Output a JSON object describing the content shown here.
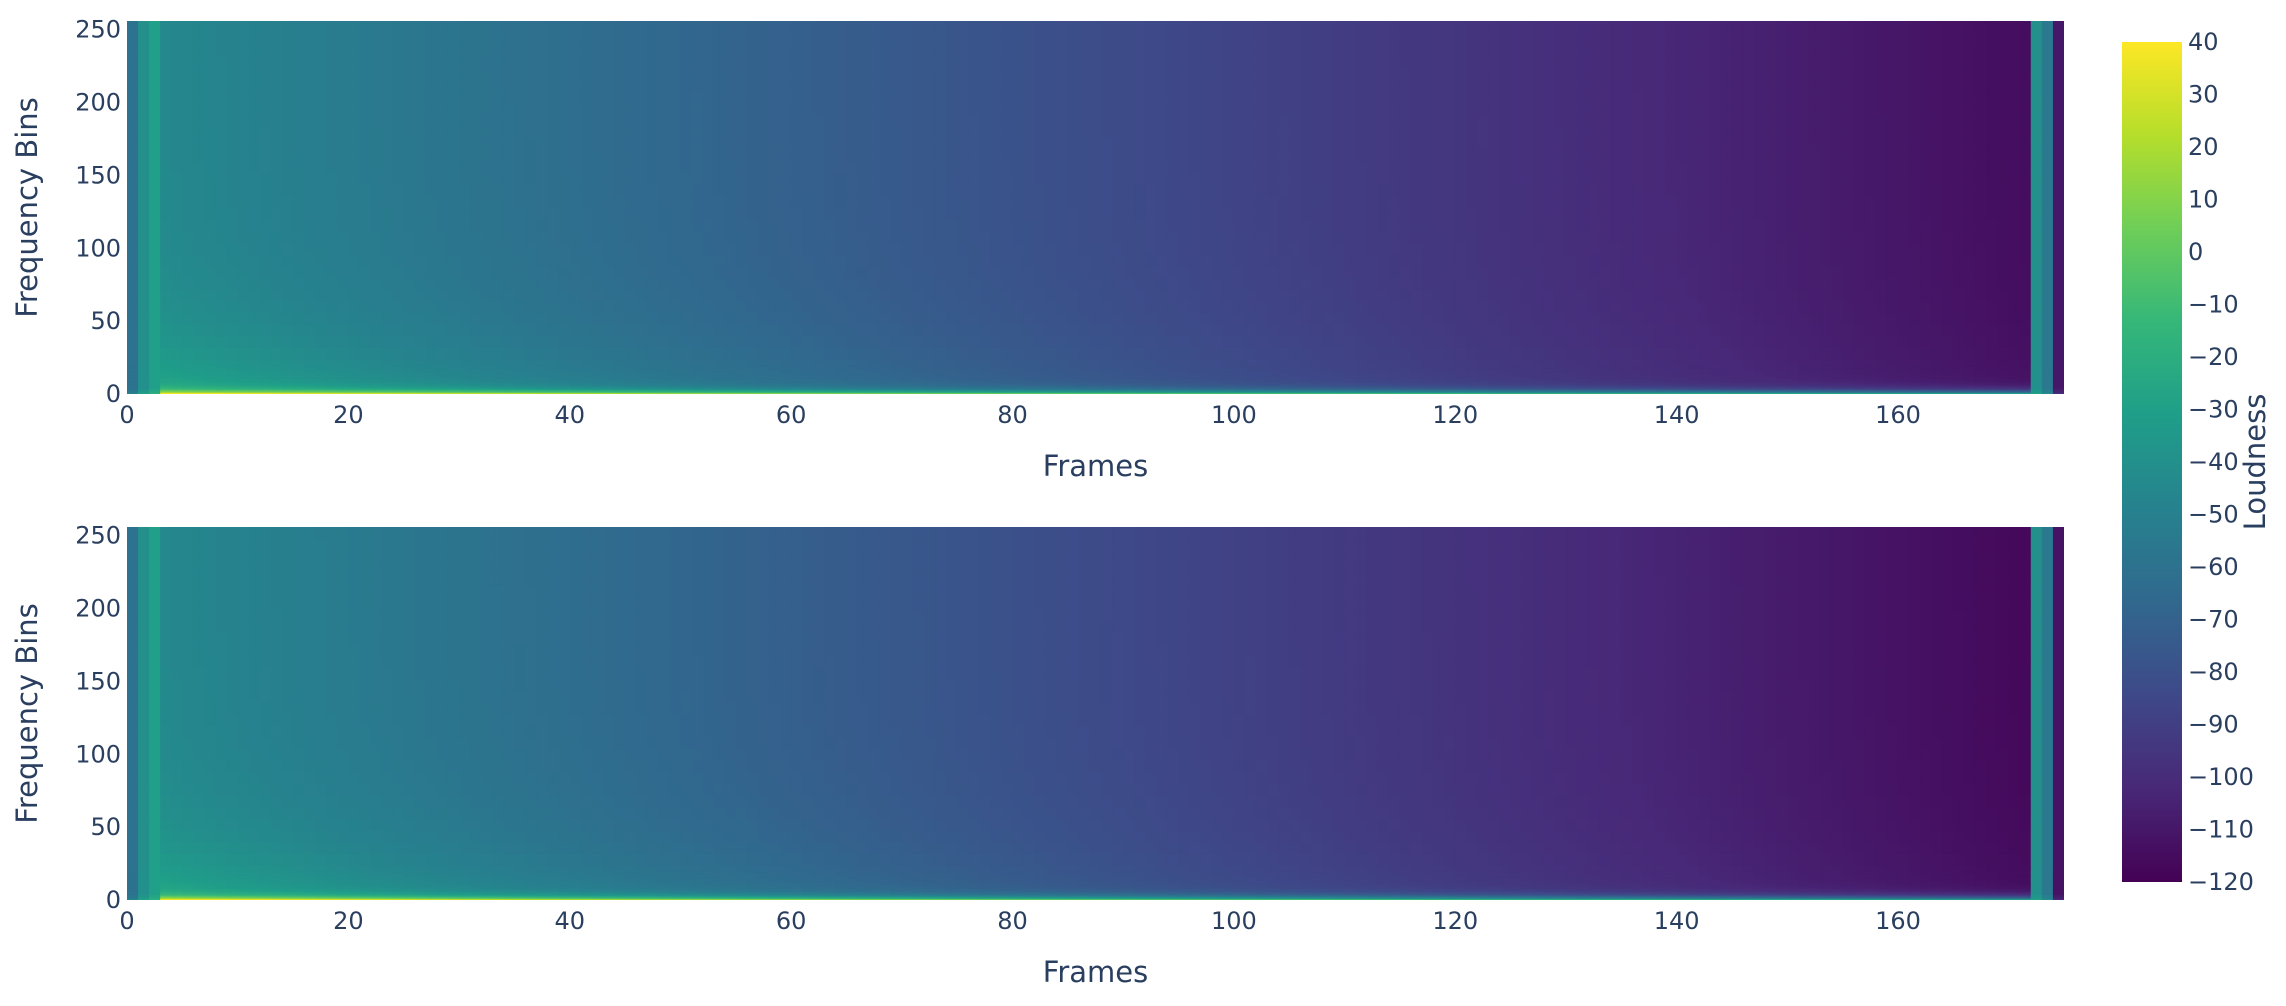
{
  "chart_data": {
    "type": "heatmap",
    "colorscale": "Viridis",
    "colorscale_stops": [
      "#440154",
      "#482878",
      "#3e4989",
      "#31688e",
      "#26828e",
      "#1f9e89",
      "#35b779",
      "#6ece58",
      "#b5de2b",
      "#fde725"
    ],
    "colorbar": {
      "title": "Loudness",
      "range": [
        -120,
        40
      ],
      "tickvals": [
        40,
        30,
        20,
        10,
        0,
        -10,
        -20,
        -30,
        -40,
        -50,
        -60,
        -70,
        -80,
        -90,
        -100,
        -110,
        -120
      ],
      "ticktext": [
        "40",
        "30",
        "20",
        "10",
        "0",
        "−10",
        "−20",
        "−30",
        "−40",
        "−50",
        "−60",
        "−70",
        "−80",
        "−90",
        "−100",
        "−110",
        "−120"
      ]
    },
    "subplots": [
      {
        "xlabel": "Frames",
        "ylabel": "Frequency Bins",
        "xlim": [
          0,
          175
        ],
        "ylim": [
          0,
          256
        ],
        "xticks": [
          "0",
          "20",
          "40",
          "60",
          "80",
          "100",
          "120",
          "140",
          "160"
        ],
        "yticks": [
          "0",
          "50",
          "100",
          "150",
          "200",
          "250"
        ],
        "n_frames": 175,
        "n_bins": 256,
        "features": {
          "left_edge_frame_values_at_top": [
            -60,
            -40,
            -30
          ],
          "start_loudness_at_top": -45,
          "end_loudness_at_top": -115,
          "low_freq_peak_loudness": 40,
          "tail_frame_values_at_top": [
            -40,
            -55,
            -110
          ]
        }
      },
      {
        "xlabel": "Frames",
        "ylabel": "Frequency Bins",
        "xlim": [
          0,
          175
        ],
        "ylim": [
          0,
          256
        ],
        "xticks": [
          "0",
          "20",
          "40",
          "60",
          "80",
          "100",
          "120",
          "140",
          "160"
        ],
        "yticks": [
          "0",
          "50",
          "100",
          "150",
          "200",
          "250"
        ],
        "n_frames": 175,
        "n_bins": 256,
        "features": {
          "left_edge_frame_values_at_top": [
            -60,
            -40,
            -30
          ],
          "start_loudness_at_top": -45,
          "end_loudness_at_top": -117,
          "low_freq_peak_loudness": 40,
          "tail_frame_values_at_top": [
            -40,
            -55,
            -112
          ]
        }
      }
    ]
  }
}
